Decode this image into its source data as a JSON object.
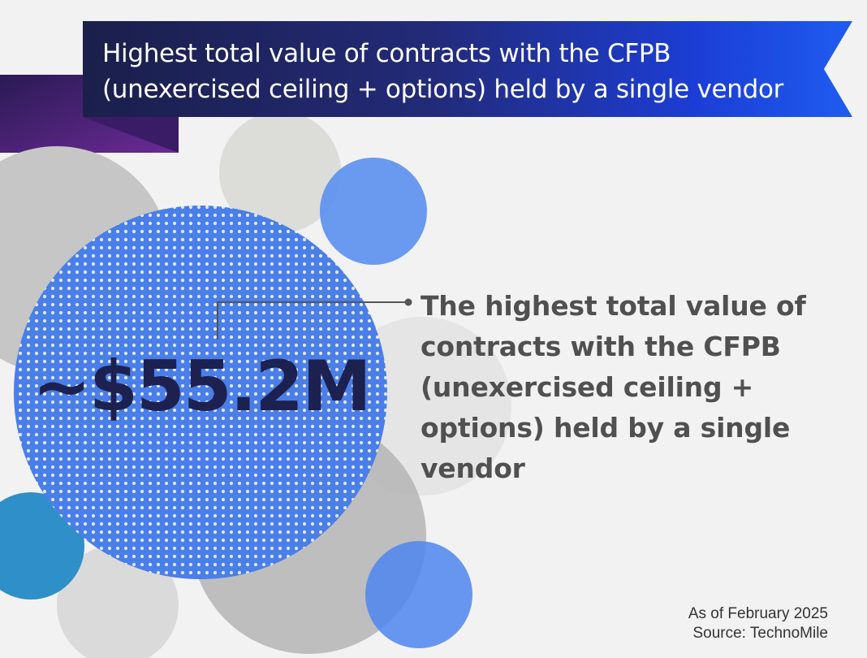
{
  "title": {
    "line1": "Highest total value of contracts with the CFPB",
    "line2": "(unexercised ceiling + options) held by a single vendor"
  },
  "stat": {
    "value": "~$55.2M",
    "description": "The highest total value of contracts with the CFPB (unexercised ceiling + options) held by a single vendor"
  },
  "footer": {
    "as_of": "As of February 2025",
    "source": "Source: TechnoMile"
  },
  "colors": {
    "dark_navy": "#1d2150",
    "accent_blue": "#3f73e6",
    "purple": "#5a2a8a",
    "gray_circle": "#c9c9c9",
    "teal_blue": "#2f8fc8"
  }
}
